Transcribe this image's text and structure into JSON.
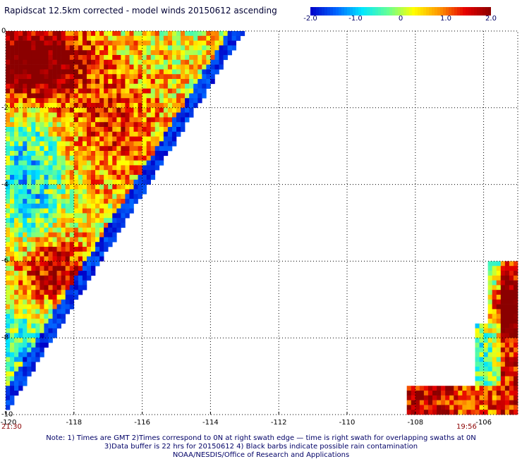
{
  "chart_data": {
    "type": "heatmap",
    "title": "Rapidscat 12.5km corrected - model winds 20150612 ascending",
    "colorbar": {
      "min": -2.0,
      "max": 2.0,
      "tick_labels": [
        "-2.0",
        "-1.0",
        "0",
        "1.0",
        "2.0"
      ],
      "tick_values": [
        -2.0,
        -1.0,
        0,
        1.0,
        2.0
      ],
      "colors": [
        "#0000c8",
        "#0064ff",
        "#00e6ff",
        "#64ff96",
        "#ffff00",
        "#ff9600",
        "#e60000",
        "#8b0000"
      ]
    },
    "xlim": [
      -120,
      -105
    ],
    "ylim": [
      -10,
      0
    ],
    "x_tick_values": [
      -120,
      -118,
      -116,
      -114,
      -112,
      -110,
      -108,
      -106
    ],
    "x_tick_labels": [
      "-120",
      "-118",
      "-116",
      "-114",
      "-112",
      "-110",
      "-108",
      "-106"
    ],
    "y_tick_values": [
      0,
      -2,
      -4,
      -6,
      -8,
      -10
    ],
    "y_tick_labels": [
      "0",
      "-2",
      "-4",
      "-6",
      "-8",
      "-10"
    ],
    "grid": true,
    "times": [
      "21:30",
      "19:56"
    ],
    "swaths": [
      {
        "x_range": [
          -120,
          -113.0
        ],
        "y_range": [
          -10,
          0
        ],
        "edge": "diagonal: lon -113.0 at lat 0 to lon -120.0 at lat -10",
        "pattern": "dark red in north-west corner, mixed yellow/orange/cyan middle, red band near -5 to -7 lat, blue along edge"
      },
      {
        "x_range": [
          -108.2,
          -105
        ],
        "y_range": [
          -10,
          -6
        ],
        "edge": "small region at south-east corner",
        "pattern": "red/orange edges with yellow, green and cyan center"
      }
    ]
  },
  "notes": {
    "line1": "Note: 1) Times are GMT 2)Times correspond to 0N at right swath edge — time is right swath for overlapping swaths at 0N",
    "line2": "3)Data buffer is 22 hrs for 20150612 4) Black barbs indicate possible rain contamination",
    "line3": "NOAA/NESDIS/Office of Research and Applications"
  }
}
